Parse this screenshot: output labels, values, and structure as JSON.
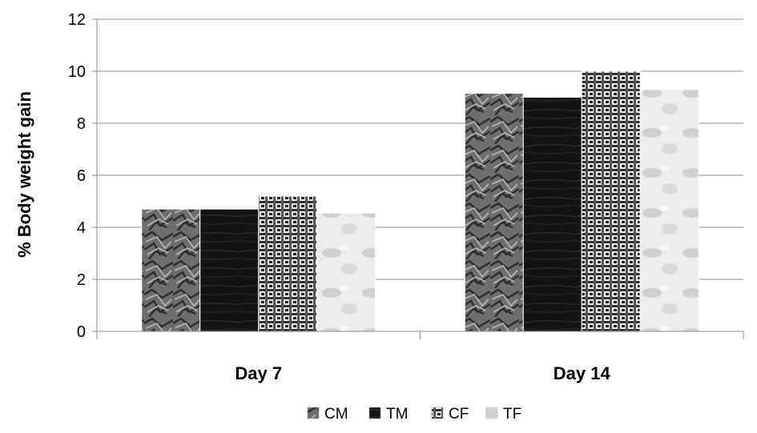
{
  "chart_data": {
    "type": "bar",
    "title": "",
    "xlabel": "",
    "ylabel": "% Body weight gain",
    "categories": [
      "Day 7",
      "Day 14"
    ],
    "series": [
      {
        "name": "CM",
        "values": [
          4.7,
          9.15
        ],
        "color": "#6e6e6e",
        "pattern": "crumpled"
      },
      {
        "name": "TM",
        "values": [
          4.7,
          9.0
        ],
        "color": "#1a1a1a",
        "pattern": "dark-wood"
      },
      {
        "name": "CF",
        "values": [
          5.2,
          10.0
        ],
        "color": "#4a4a4a",
        "pattern": "woven"
      },
      {
        "name": "TF",
        "values": [
          4.55,
          9.3
        ],
        "color": "#e6e6e6",
        "pattern": "marble"
      }
    ],
    "ylim": [
      0,
      12
    ],
    "yticks": [
      "0",
      "2",
      "4",
      "6",
      "8",
      "10",
      "12"
    ],
    "grid": true,
    "legend": "bottom"
  }
}
